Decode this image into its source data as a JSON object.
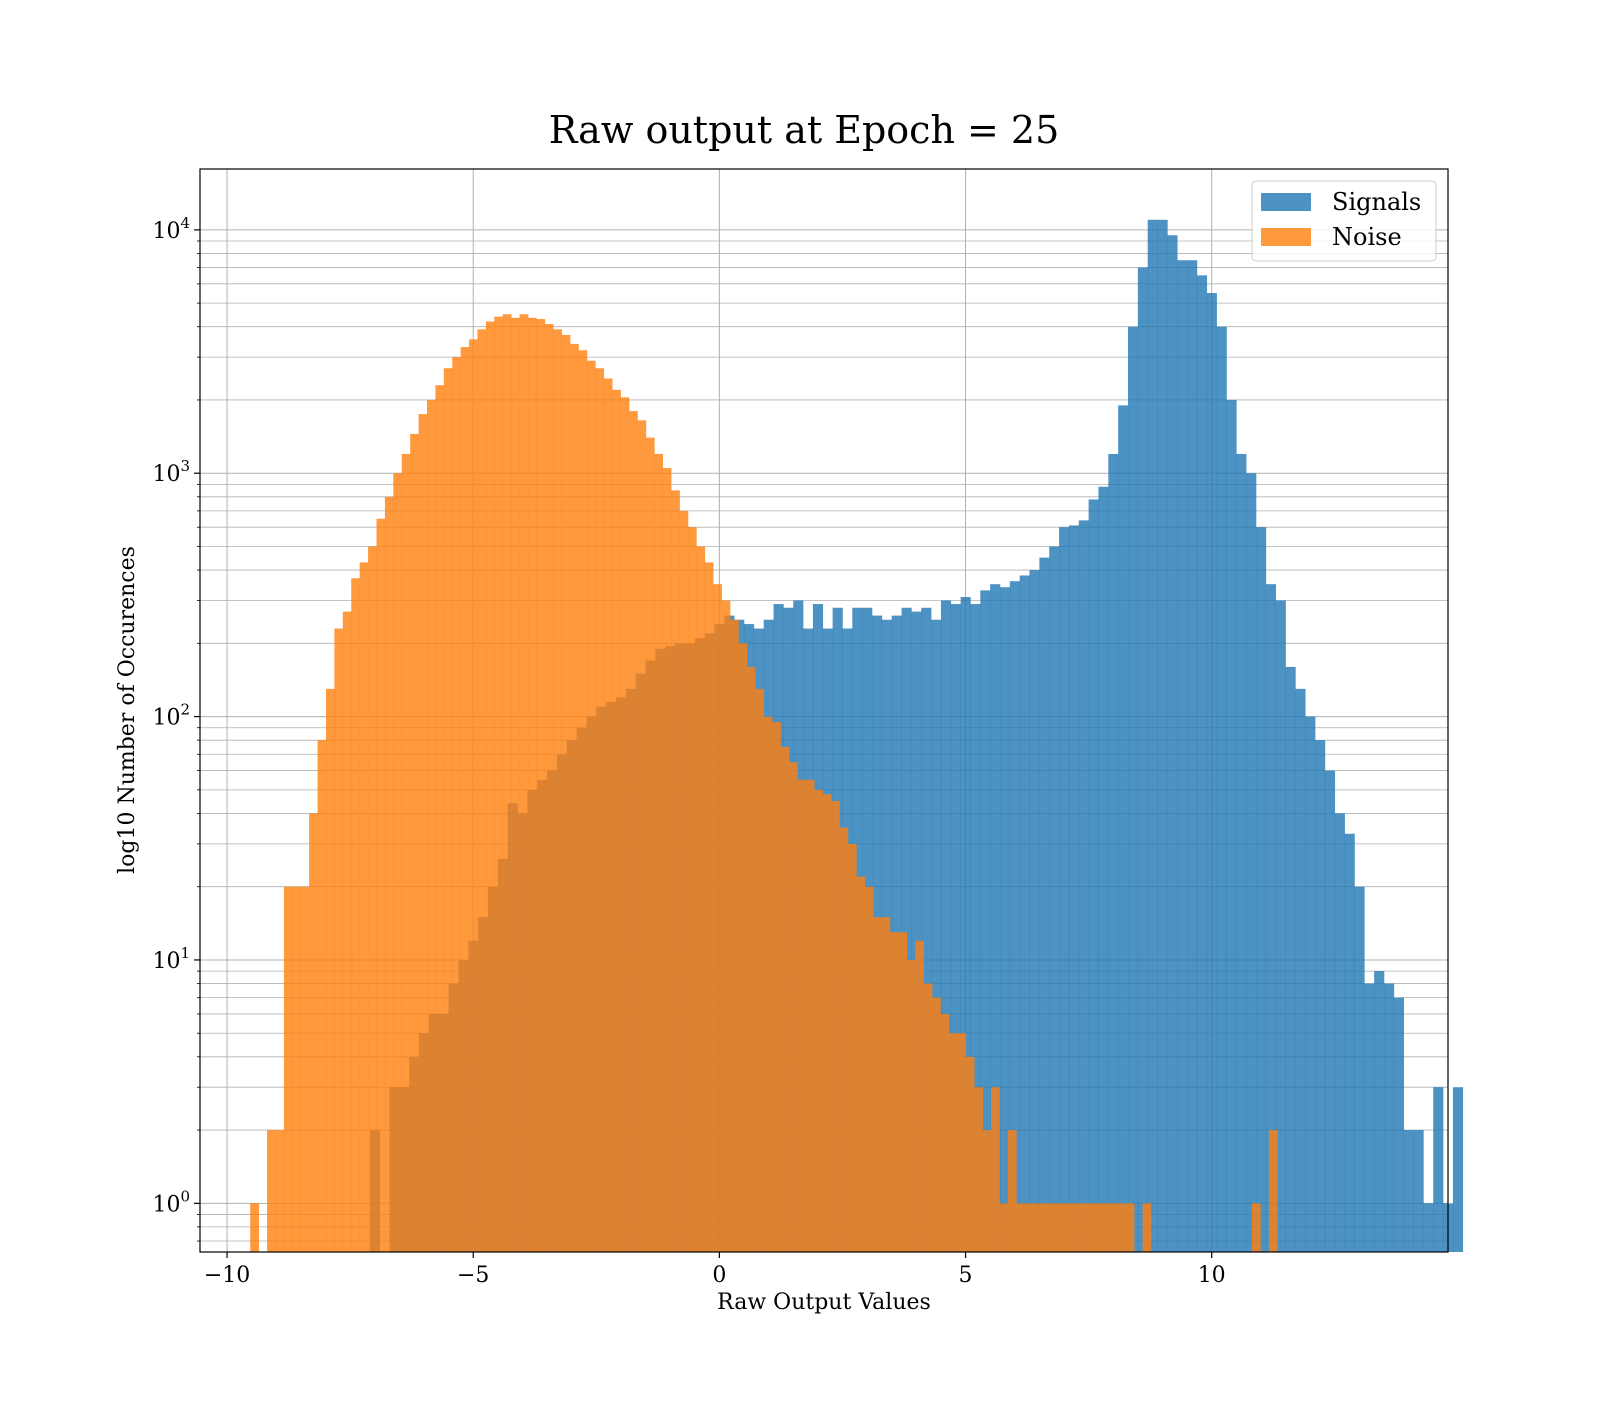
{
  "chart_data": {
    "type": "histogram",
    "title": "Raw output at Epoch = 25",
    "xlabel": "Raw Output Values",
    "ylabel": "log10 Number of Occurences",
    "xlim": [
      -10.55,
      14.8
    ],
    "ylim_log10": [
      -0.2,
      4.25
    ],
    "yscale": "log",
    "grid": true,
    "legend_position": "top-right",
    "x_ticks": [
      {
        "value": -10,
        "label": "−10"
      },
      {
        "value": -5,
        "label": "−5"
      },
      {
        "value": 0,
        "label": "0"
      },
      {
        "value": 5,
        "label": "5"
      },
      {
        "value": 10,
        "label": "10"
      }
    ],
    "y_ticks": [
      {
        "exp": 0,
        "base": "10",
        "sup": "0"
      },
      {
        "exp": 1,
        "base": "10",
        "sup": "1"
      },
      {
        "exp": 2,
        "base": "10",
        "sup": "2"
      },
      {
        "exp": 3,
        "base": "10",
        "sup": "3"
      },
      {
        "exp": 4,
        "base": "10",
        "sup": "4"
      }
    ],
    "series": [
      {
        "name": "Signals",
        "color": "#1f77b4",
        "opacity": 0.8,
        "bin_start": -7.1,
        "bin_width": 0.2,
        "counts": [
          2,
          0,
          3,
          3,
          4,
          5,
          6,
          6,
          8,
          10,
          12,
          15,
          20,
          26,
          44,
          40,
          50,
          55,
          60,
          70,
          80,
          90,
          100,
          110,
          115,
          120,
          130,
          150,
          170,
          190,
          195,
          200,
          200,
          210,
          220,
          240,
          260,
          250,
          240,
          230,
          250,
          290,
          280,
          300,
          230,
          290,
          230,
          280,
          230,
          280,
          280,
          260,
          250,
          260,
          280,
          270,
          280,
          250,
          300,
          290,
          310,
          290,
          330,
          350,
          340,
          360,
          380,
          400,
          450,
          500,
          600,
          610,
          640,
          780,
          880,
          1200,
          1900,
          4000,
          7000,
          11000,
          11000,
          9500,
          7500,
          7500,
          6500,
          5500,
          4000,
          2000,
          1200,
          1000,
          600,
          350,
          300,
          160,
          130,
          100,
          80,
          60,
          40,
          33,
          20,
          8,
          9,
          8,
          7,
          2,
          2,
          1,
          3,
          1,
          3
        ]
      },
      {
        "name": "Noise",
        "color": "#ff7f0e",
        "opacity": 0.8,
        "bin_start": -9.53,
        "bin_width": 0.171,
        "counts": [
          1,
          0,
          2,
          2,
          20,
          20,
          20,
          40,
          80,
          130,
          230,
          270,
          370,
          430,
          500,
          650,
          800,
          1000,
          1200,
          1450,
          1750,
          2000,
          2300,
          2700,
          3000,
          3300,
          3550,
          3900,
          4200,
          4400,
          4500,
          4350,
          4500,
          4350,
          4300,
          4100,
          3900,
          3700,
          3400,
          3200,
          2900,
          2700,
          2450,
          2200,
          2050,
          1800,
          1650,
          1400,
          1200,
          1050,
          850,
          700,
          600,
          500,
          430,
          350,
          300,
          250,
          200,
          160,
          130,
          100,
          95,
          75,
          65,
          55,
          55,
          50,
          48,
          45,
          35,
          30,
          22,
          20,
          15,
          15,
          13,
          13,
          10,
          12,
          8,
          7,
          6,
          5,
          5,
          4,
          3,
          2,
          3,
          1,
          2,
          1,
          1,
          1,
          1,
          1,
          1,
          1,
          1,
          1,
          1,
          1,
          1,
          1,
          1,
          0,
          1,
          0,
          0,
          0,
          0,
          0,
          0,
          0,
          0,
          0,
          0,
          0,
          0,
          1,
          0,
          2,
          0
        ]
      }
    ]
  }
}
